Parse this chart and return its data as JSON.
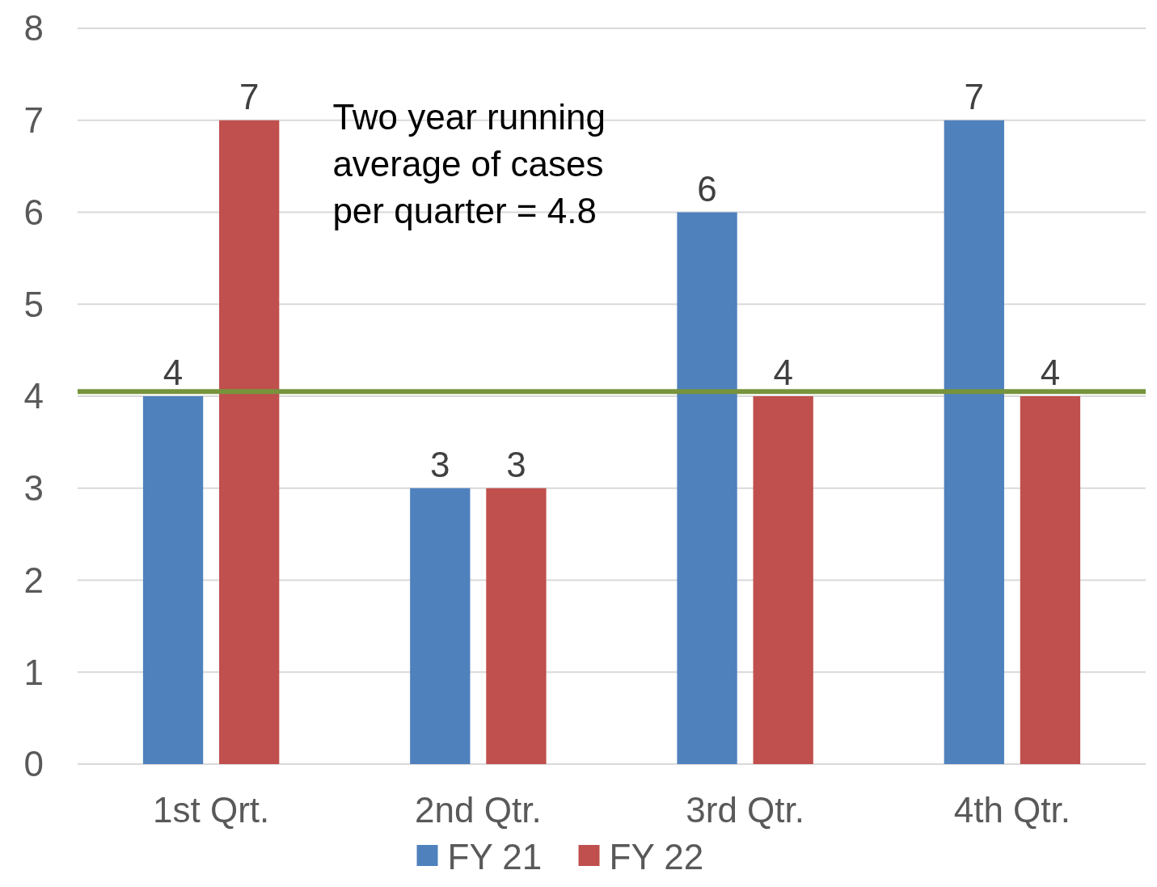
{
  "chart_data": {
    "type": "bar",
    "categories": [
      "1st Qrt.",
      "2nd Qtr.",
      "3rd Qtr.",
      "4th Qtr."
    ],
    "series": [
      {
        "name": "FY 21",
        "color": "#4f81bd",
        "values": [
          4,
          3,
          6,
          7
        ]
      },
      {
        "name": "FY 22",
        "color": "#c0504d",
        "values": [
          7,
          3,
          4,
          4
        ]
      }
    ],
    "ylim": [
      0,
      8
    ],
    "yticks": [
      0,
      1,
      2,
      3,
      4,
      5,
      6,
      7,
      8
    ],
    "grid": "y",
    "legend": "bottom",
    "data_labels": true,
    "ref_lines": [
      {
        "axis": "y",
        "value": 4.05,
        "color": "#77933c"
      }
    ],
    "annotations": [
      "Two year running average of cases per quarter = 4.8"
    ]
  }
}
